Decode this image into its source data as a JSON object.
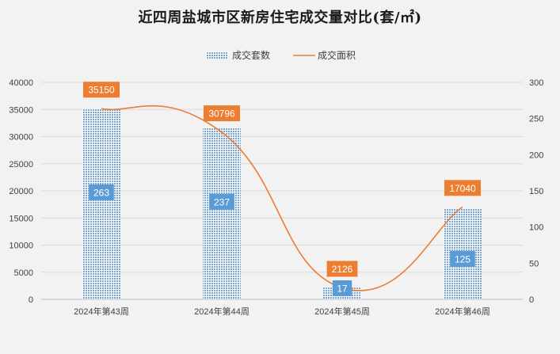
{
  "chart_data": {
    "type": "bar",
    "title": "近四周盐城市区新房住宅成交量对比(套/㎡)",
    "categories": [
      "2024年第43周",
      "2024年第44周",
      "2024年第45周",
      "2024年第46周"
    ],
    "series": [
      {
        "name": "成交套数",
        "type": "bar",
        "axis": "right",
        "values": [
          263,
          237,
          17,
          125
        ],
        "color": "#9dc3e6"
      },
      {
        "name": "成交面积",
        "type": "line",
        "axis": "left",
        "values": [
          35150,
          30796,
          2126,
          17040
        ],
        "color": "#ed7d31"
      }
    ],
    "y_left": {
      "min": 0,
      "max": 40000,
      "ticks": [
        0,
        5000,
        10000,
        15000,
        20000,
        25000,
        30000,
        35000,
        40000
      ]
    },
    "y_right": {
      "min": 0,
      "max": 300,
      "ticks": [
        0,
        50,
        100,
        150,
        200,
        250,
        300
      ]
    },
    "legend_position": "top",
    "grid": true,
    "bar_label_color": "#5b9bd5",
    "line_label_color": "#ed7d31"
  }
}
